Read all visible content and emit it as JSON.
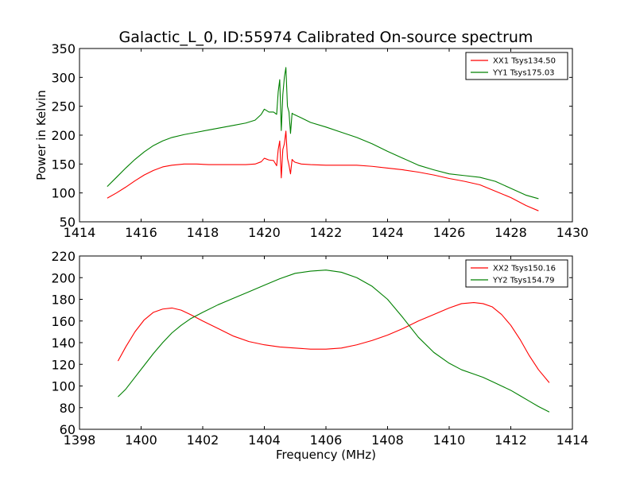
{
  "title": "Galactic_L_0, ID:55974 Calibrated On-source spectrum",
  "chart_data": [
    {
      "type": "line",
      "ylabel": "Power in Kelvin",
      "xlabel": "",
      "xlim": [
        1414,
        1430
      ],
      "ylim": [
        50,
        350
      ],
      "xticks": [
        1414,
        1416,
        1418,
        1420,
        1422,
        1424,
        1426,
        1428,
        1430
      ],
      "yticks": [
        50,
        100,
        150,
        200,
        250,
        300,
        350
      ],
      "legend_position": "top-right",
      "series": [
        {
          "name": "XX1 Tsys134.50",
          "color": "#ff0000",
          "x": [
            1414.9,
            1415.2,
            1415.5,
            1415.8,
            1416.1,
            1416.4,
            1416.7,
            1417.0,
            1417.4,
            1417.8,
            1418.2,
            1418.6,
            1419.0,
            1419.4,
            1419.7,
            1419.9,
            1420.0,
            1420.15,
            1420.3,
            1420.4,
            1420.45,
            1420.5,
            1420.55,
            1420.6,
            1420.65,
            1420.7,
            1420.75,
            1420.8,
            1420.85,
            1420.9,
            1420.95,
            1421.0,
            1421.2,
            1421.5,
            1422.0,
            1422.5,
            1423.0,
            1423.5,
            1424.0,
            1424.5,
            1425.0,
            1425.5,
            1426.0,
            1426.5,
            1427.0,
            1427.5,
            1428.0,
            1428.5,
            1428.9
          ],
          "values": [
            91,
            100,
            110,
            121,
            131,
            139,
            145,
            148,
            150,
            150,
            149,
            149,
            149,
            149,
            150,
            154,
            160,
            157,
            156,
            147,
            175,
            190,
            126,
            175,
            185,
            207,
            160,
            148,
            133,
            158,
            155,
            153,
            150,
            149,
            148,
            148,
            148,
            146,
            143,
            140,
            136,
            131,
            125,
            120,
            114,
            103,
            92,
            78,
            69
          ]
        },
        {
          "name": "YY1 Tsys175.03",
          "color": "#008000",
          "x": [
            1414.9,
            1415.2,
            1415.5,
            1415.8,
            1416.1,
            1416.4,
            1416.7,
            1417.0,
            1417.4,
            1417.8,
            1418.2,
            1418.6,
            1419.0,
            1419.4,
            1419.7,
            1419.9,
            1420.0,
            1420.15,
            1420.3,
            1420.4,
            1420.45,
            1420.5,
            1420.55,
            1420.6,
            1420.65,
            1420.7,
            1420.75,
            1420.8,
            1420.85,
            1420.9,
            1420.95,
            1421.0,
            1421.2,
            1421.5,
            1422.0,
            1422.5,
            1423.0,
            1423.5,
            1424.0,
            1424.5,
            1425.0,
            1425.5,
            1426.0,
            1426.5,
            1427.0,
            1427.5,
            1428.0,
            1428.5,
            1428.9
          ],
          "values": [
            111,
            127,
            143,
            158,
            171,
            182,
            190,
            196,
            201,
            205,
            209,
            213,
            217,
            221,
            226,
            236,
            245,
            240,
            240,
            236,
            275,
            296,
            208,
            270,
            300,
            317,
            250,
            240,
            203,
            238,
            236,
            235,
            230,
            222,
            214,
            205,
            196,
            185,
            172,
            160,
            148,
            140,
            133,
            130,
            127,
            120,
            108,
            96,
            90
          ]
        }
      ]
    },
    {
      "type": "line",
      "ylabel": "",
      "xlabel": "Frequency (MHz)",
      "xlim": [
        1398,
        1414
      ],
      "ylim": [
        60,
        220
      ],
      "xticks": [
        1398,
        1400,
        1402,
        1404,
        1406,
        1408,
        1410,
        1412,
        1414
      ],
      "yticks": [
        60,
        80,
        100,
        120,
        140,
        160,
        180,
        200,
        220
      ],
      "legend_position": "top-right",
      "series": [
        {
          "name": "XX2 Tsys150.16",
          "color": "#ff0000",
          "x": [
            1399.25,
            1399.5,
            1399.8,
            1400.1,
            1400.4,
            1400.7,
            1401.0,
            1401.3,
            1401.6,
            1402.0,
            1402.5,
            1403.0,
            1403.5,
            1404.0,
            1404.5,
            1405.0,
            1405.5,
            1406.0,
            1406.5,
            1407.0,
            1407.5,
            1408.0,
            1408.5,
            1409.0,
            1409.5,
            1410.0,
            1410.4,
            1410.8,
            1411.1,
            1411.4,
            1411.7,
            1412.0,
            1412.3,
            1412.6,
            1412.9,
            1413.25
          ],
          "values": [
            123,
            136,
            150,
            161,
            168,
            171,
            172,
            170,
            166,
            160,
            153,
            146,
            141,
            138,
            136,
            135,
            134,
            134,
            135,
            138,
            142,
            147,
            153,
            160,
            166,
            172,
            176,
            177,
            176,
            173,
            166,
            156,
            143,
            128,
            115,
            103
          ]
        },
        {
          "name": "YY2 Tsys154.79",
          "color": "#008000",
          "x": [
            1399.25,
            1399.5,
            1399.8,
            1400.1,
            1400.4,
            1400.7,
            1401.0,
            1401.3,
            1401.6,
            1402.0,
            1402.5,
            1403.0,
            1403.5,
            1404.0,
            1404.5,
            1405.0,
            1405.5,
            1406.0,
            1406.5,
            1407.0,
            1407.5,
            1408.0,
            1408.5,
            1409.0,
            1409.5,
            1410.0,
            1410.4,
            1410.8,
            1411.1,
            1411.4,
            1411.7,
            1412.0,
            1412.3,
            1412.6,
            1412.9,
            1413.25
          ],
          "values": [
            90,
            97,
            108,
            119,
            130,
            140,
            149,
            156,
            162,
            168,
            175,
            181,
            187,
            193,
            199,
            204,
            206,
            207,
            205,
            200,
            192,
            180,
            163,
            145,
            131,
            121,
            115,
            111,
            108,
            104,
            100,
            96,
            91,
            86,
            81,
            76
          ]
        }
      ]
    }
  ]
}
